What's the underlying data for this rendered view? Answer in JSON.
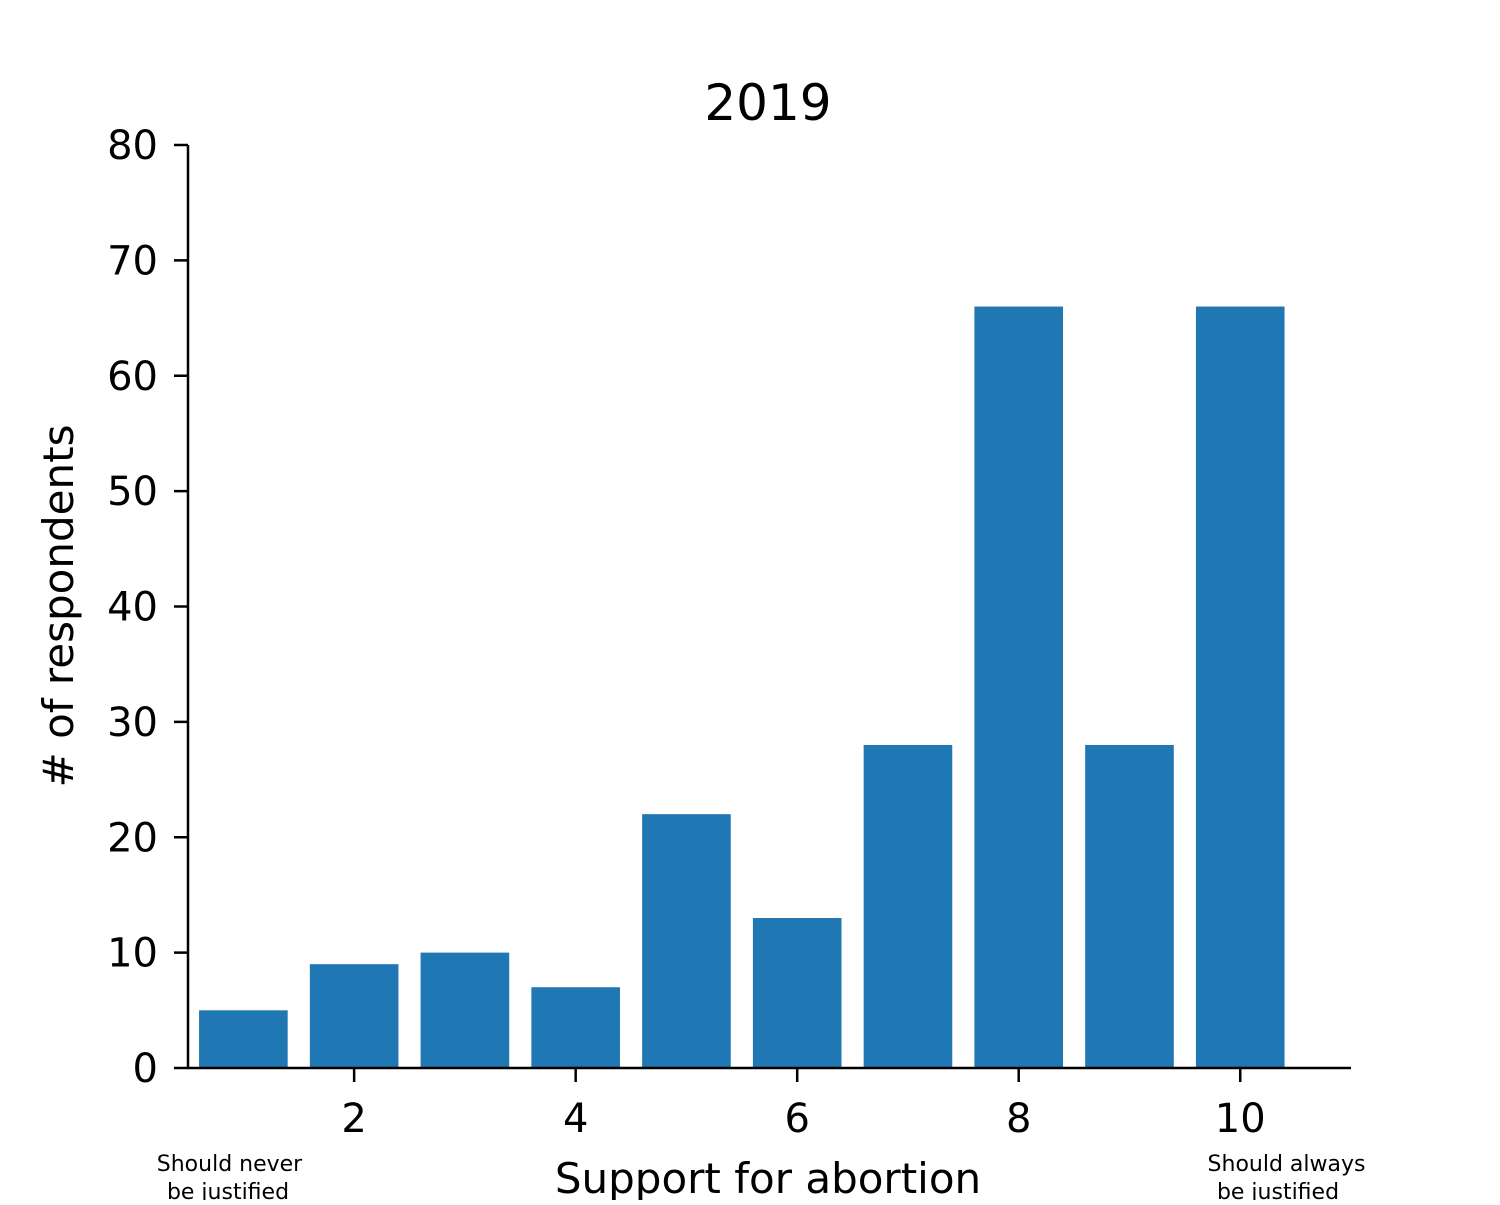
{
  "chart_data": {
    "type": "bar",
    "title": "2019",
    "xlabel": "Support for abortion",
    "ylabel": "# of respondents",
    "x": [
      1,
      2,
      3,
      4,
      5,
      6,
      7,
      8,
      9,
      10
    ],
    "values": [
      5,
      9,
      10,
      7,
      22,
      13,
      28,
      66,
      28,
      66
    ],
    "xlim": [
      0.5,
      11
    ],
    "ylim": [
      0,
      80
    ],
    "xticks": [
      2,
      4,
      6,
      8,
      10
    ],
    "yticks": [
      0,
      10,
      20,
      30,
      40,
      50,
      60,
      70,
      80
    ],
    "bar_color": "#1f77b4",
    "grid": false,
    "anchors": {
      "low": [
        "Should never",
        "be justified"
      ],
      "high": [
        "Should always",
        "be justified"
      ]
    }
  }
}
